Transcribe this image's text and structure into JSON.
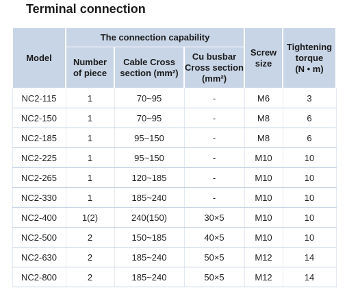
{
  "title": "Terminal connection",
  "table": {
    "group_header": "The connection capability",
    "headers": [
      [
        "Model"
      ],
      [
        "Number",
        "of piece"
      ],
      [
        "Cable Cross",
        "section (mm²)"
      ],
      [
        "Cu busbar",
        "Cross section",
        "(mm²)"
      ],
      [
        "Screw",
        "size"
      ],
      [
        "Tightening",
        "torque",
        "(N • m)"
      ]
    ],
    "rows": [
      [
        "NC2-115",
        "1",
        "70~95",
        "-",
        "M6",
        "3"
      ],
      [
        "NC2-150",
        "1",
        "70~95",
        "-",
        "M8",
        "6"
      ],
      [
        "NC2-185",
        "1",
        "95~150",
        "-",
        "M8",
        "6"
      ],
      [
        "NC2-225",
        "1",
        "95~150",
        "-",
        "M10",
        "10"
      ],
      [
        "NC2-265",
        "1",
        "120~185",
        "-",
        "M10",
        "10"
      ],
      [
        "NC2-330",
        "1",
        "185~240",
        "-",
        "M10",
        "10"
      ],
      [
        "NC2-400",
        "1(2)",
        "240(150)",
        "30×5",
        "M10",
        "10"
      ],
      [
        "NC2-500",
        "2",
        "150~185",
        "40×5",
        "M10",
        "10"
      ],
      [
        "NC2-630",
        "2",
        "185~240",
        "50×5",
        "M12",
        "14"
      ],
      [
        "NC2-800",
        "2",
        "185~240",
        "50×5",
        "M12",
        "14"
      ]
    ]
  }
}
